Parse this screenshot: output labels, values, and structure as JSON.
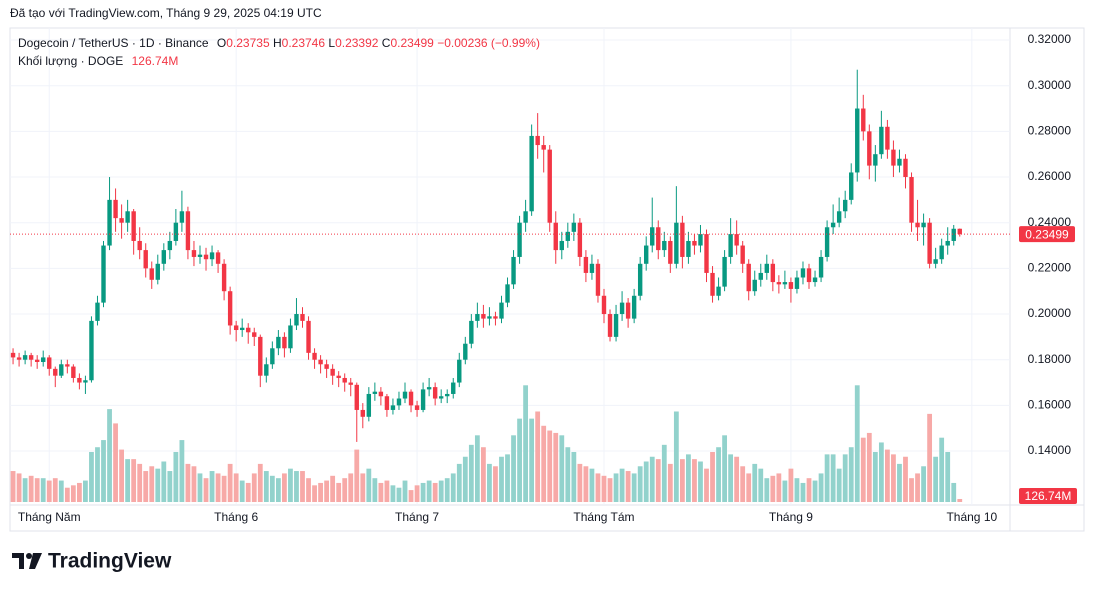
{
  "header": "Đã tạo với TradingView.com, Tháng 9 29, 2025 04:19 UTC",
  "chart_data": {
    "type": "candlestick",
    "symbol": "Dogecoin / TetherUS · 1D · Binance",
    "ohlc_labels": [
      "O",
      "H",
      "L",
      "C"
    ],
    "change_label": "−0.00236 (−0.99%)",
    "volume_title": "Khối lượng · DOGE",
    "last_volume_label": "126.74M",
    "up_color": "#089981",
    "down_color": "#f23645",
    "up_volume_color": "#92d2cc",
    "down_volume_color": "#f7a9a7",
    "grid": true,
    "xlim": [
      -2,
      165
    ],
    "xticks": [
      {
        "value": 6,
        "label": "Tháng Năm"
      },
      {
        "value": 37,
        "label": "Tháng 6"
      },
      {
        "value": 67,
        "label": "Tháng 7"
      },
      {
        "value": 98,
        "label": "Tháng Tám"
      },
      {
        "value": 129,
        "label": "Tháng 9"
      },
      {
        "value": 159,
        "label": "Tháng 10"
      }
    ],
    "ylim": [
      0.125,
      0.325
    ],
    "yticks": [
      {
        "value": 0.32,
        "label": "0.32000"
      },
      {
        "value": 0.3,
        "label": "0.30000"
      },
      {
        "value": 0.28,
        "label": "0.28000"
      },
      {
        "value": 0.26,
        "label": "0.26000"
      },
      {
        "value": 0.24,
        "label": "0.24000"
      },
      {
        "value": 0.22,
        "label": "0.22000"
      },
      {
        "value": 0.2,
        "label": "0.20000"
      },
      {
        "value": 0.18,
        "label": "0.18000"
      },
      {
        "value": 0.16,
        "label": "0.16000"
      },
      {
        "value": 0.14,
        "label": "0.14000"
      }
    ],
    "volume_ylim": [
      0,
      5500
    ],
    "candles": [
      [
        0.183,
        0.185,
        0.178,
        0.181
      ],
      [
        0.181,
        0.183,
        0.177,
        0.18
      ],
      [
        0.18,
        0.184,
        0.178,
        0.182
      ],
      [
        0.182,
        0.183,
        0.177,
        0.18
      ],
      [
        0.18,
        0.182,
        0.176,
        0.179
      ],
      [
        0.179,
        0.184,
        0.177,
        0.181
      ],
      [
        0.181,
        0.182,
        0.173,
        0.176
      ],
      [
        0.176,
        0.177,
        0.168,
        0.173
      ],
      [
        0.173,
        0.18,
        0.172,
        0.178
      ],
      [
        0.178,
        0.18,
        0.174,
        0.177
      ],
      [
        0.177,
        0.178,
        0.17,
        0.172
      ],
      [
        0.172,
        0.174,
        0.167,
        0.17
      ],
      [
        0.17,
        0.173,
        0.165,
        0.171
      ],
      [
        0.171,
        0.199,
        0.17,
        0.197
      ],
      [
        0.197,
        0.208,
        0.195,
        0.205
      ],
      [
        0.205,
        0.232,
        0.203,
        0.23
      ],
      [
        0.23,
        0.26,
        0.228,
        0.25
      ],
      [
        0.25,
        0.255,
        0.236,
        0.242
      ],
      [
        0.242,
        0.248,
        0.233,
        0.24
      ],
      [
        0.24,
        0.25,
        0.236,
        0.245
      ],
      [
        0.245,
        0.246,
        0.226,
        0.232
      ],
      [
        0.232,
        0.238,
        0.224,
        0.228
      ],
      [
        0.228,
        0.231,
        0.216,
        0.22
      ],
      [
        0.22,
        0.223,
        0.211,
        0.215
      ],
      [
        0.215,
        0.226,
        0.213,
        0.222
      ],
      [
        0.222,
        0.231,
        0.219,
        0.228
      ],
      [
        0.228,
        0.236,
        0.224,
        0.232
      ],
      [
        0.232,
        0.246,
        0.23,
        0.24
      ],
      [
        0.24,
        0.254,
        0.236,
        0.245
      ],
      [
        0.245,
        0.247,
        0.224,
        0.228
      ],
      [
        0.228,
        0.232,
        0.221,
        0.225
      ],
      [
        0.225,
        0.23,
        0.222,
        0.226
      ],
      [
        0.226,
        0.229,
        0.219,
        0.224
      ],
      [
        0.224,
        0.23,
        0.221,
        0.227
      ],
      [
        0.227,
        0.228,
        0.218,
        0.222
      ],
      [
        0.222,
        0.224,
        0.206,
        0.21
      ],
      [
        0.21,
        0.212,
        0.191,
        0.195
      ],
      [
        0.195,
        0.197,
        0.188,
        0.193
      ],
      [
        0.193,
        0.198,
        0.19,
        0.194
      ],
      [
        0.194,
        0.196,
        0.187,
        0.192
      ],
      [
        0.192,
        0.194,
        0.186,
        0.19
      ],
      [
        0.19,
        0.191,
        0.168,
        0.173
      ],
      [
        0.173,
        0.181,
        0.17,
        0.178
      ],
      [
        0.178,
        0.188,
        0.176,
        0.185
      ],
      [
        0.185,
        0.193,
        0.182,
        0.19
      ],
      [
        0.19,
        0.192,
        0.181,
        0.185
      ],
      [
        0.185,
        0.198,
        0.183,
        0.195
      ],
      [
        0.195,
        0.207,
        0.193,
        0.2
      ],
      [
        0.2,
        0.203,
        0.194,
        0.197
      ],
      [
        0.197,
        0.199,
        0.18,
        0.183
      ],
      [
        0.183,
        0.185,
        0.176,
        0.18
      ],
      [
        0.18,
        0.182,
        0.174,
        0.178
      ],
      [
        0.178,
        0.18,
        0.172,
        0.176
      ],
      [
        0.176,
        0.178,
        0.169,
        0.173
      ],
      [
        0.173,
        0.175,
        0.168,
        0.172
      ],
      [
        0.172,
        0.174,
        0.166,
        0.17
      ],
      [
        0.17,
        0.172,
        0.164,
        0.169
      ],
      [
        0.169,
        0.17,
        0.144,
        0.158
      ],
      [
        0.158,
        0.161,
        0.15,
        0.155
      ],
      [
        0.155,
        0.168,
        0.153,
        0.165
      ],
      [
        0.165,
        0.17,
        0.162,
        0.166
      ],
      [
        0.166,
        0.168,
        0.16,
        0.164
      ],
      [
        0.164,
        0.165,
        0.155,
        0.158
      ],
      [
        0.158,
        0.163,
        0.156,
        0.16
      ],
      [
        0.16,
        0.166,
        0.158,
        0.163
      ],
      [
        0.163,
        0.17,
        0.161,
        0.166
      ],
      [
        0.166,
        0.167,
        0.157,
        0.16
      ],
      [
        0.16,
        0.162,
        0.155,
        0.158
      ],
      [
        0.158,
        0.17,
        0.157,
        0.167
      ],
      [
        0.167,
        0.172,
        0.164,
        0.168
      ],
      [
        0.168,
        0.17,
        0.16,
        0.163
      ],
      [
        0.163,
        0.167,
        0.161,
        0.164
      ],
      [
        0.164,
        0.167,
        0.161,
        0.165
      ],
      [
        0.165,
        0.172,
        0.163,
        0.17
      ],
      [
        0.17,
        0.183,
        0.168,
        0.18
      ],
      [
        0.18,
        0.19,
        0.178,
        0.187
      ],
      [
        0.187,
        0.2,
        0.185,
        0.197
      ],
      [
        0.197,
        0.205,
        0.194,
        0.2
      ],
      [
        0.2,
        0.204,
        0.194,
        0.198
      ],
      [
        0.198,
        0.203,
        0.195,
        0.199
      ],
      [
        0.199,
        0.201,
        0.195,
        0.198
      ],
      [
        0.198,
        0.208,
        0.196,
        0.205
      ],
      [
        0.205,
        0.216,
        0.203,
        0.213
      ],
      [
        0.213,
        0.228,
        0.211,
        0.225
      ],
      [
        0.225,
        0.243,
        0.222,
        0.24
      ],
      [
        0.24,
        0.25,
        0.236,
        0.245
      ],
      [
        0.245,
        0.283,
        0.243,
        0.278
      ],
      [
        0.278,
        0.288,
        0.268,
        0.274
      ],
      [
        0.274,
        0.278,
        0.262,
        0.272
      ],
      [
        0.272,
        0.274,
        0.236,
        0.24
      ],
      [
        0.24,
        0.245,
        0.222,
        0.228
      ],
      [
        0.228,
        0.236,
        0.224,
        0.232
      ],
      [
        0.232,
        0.24,
        0.229,
        0.236
      ],
      [
        0.236,
        0.244,
        0.232,
        0.24
      ],
      [
        0.24,
        0.242,
        0.221,
        0.225
      ],
      [
        0.225,
        0.228,
        0.214,
        0.218
      ],
      [
        0.218,
        0.226,
        0.215,
        0.222
      ],
      [
        0.222,
        0.224,
        0.205,
        0.208
      ],
      [
        0.208,
        0.211,
        0.196,
        0.2
      ],
      [
        0.2,
        0.202,
        0.188,
        0.19
      ],
      [
        0.19,
        0.204,
        0.188,
        0.2
      ],
      [
        0.2,
        0.21,
        0.197,
        0.205
      ],
      [
        0.205,
        0.207,
        0.194,
        0.198
      ],
      [
        0.198,
        0.211,
        0.196,
        0.208
      ],
      [
        0.208,
        0.225,
        0.206,
        0.222
      ],
      [
        0.222,
        0.234,
        0.219,
        0.23
      ],
      [
        0.23,
        0.251,
        0.227,
        0.238
      ],
      [
        0.238,
        0.241,
        0.224,
        0.228
      ],
      [
        0.228,
        0.236,
        0.225,
        0.232
      ],
      [
        0.232,
        0.234,
        0.218,
        0.222
      ],
      [
        0.222,
        0.256,
        0.22,
        0.24
      ],
      [
        0.24,
        0.243,
        0.22,
        0.225
      ],
      [
        0.225,
        0.236,
        0.222,
        0.232
      ],
      [
        0.232,
        0.235,
        0.226,
        0.23
      ],
      [
        0.23,
        0.239,
        0.227,
        0.235
      ],
      [
        0.235,
        0.237,
        0.214,
        0.218
      ],
      [
        0.218,
        0.221,
        0.205,
        0.208
      ],
      [
        0.208,
        0.216,
        0.206,
        0.212
      ],
      [
        0.212,
        0.228,
        0.21,
        0.225
      ],
      [
        0.225,
        0.242,
        0.222,
        0.235
      ],
      [
        0.235,
        0.241,
        0.226,
        0.23
      ],
      [
        0.23,
        0.232,
        0.218,
        0.222
      ],
      [
        0.222,
        0.224,
        0.206,
        0.21
      ],
      [
        0.21,
        0.219,
        0.208,
        0.215
      ],
      [
        0.215,
        0.222,
        0.212,
        0.218
      ],
      [
        0.218,
        0.226,
        0.215,
        0.222
      ],
      [
        0.222,
        0.224,
        0.21,
        0.214
      ],
      [
        0.214,
        0.217,
        0.209,
        0.213
      ],
      [
        0.213,
        0.219,
        0.211,
        0.214
      ],
      [
        0.214,
        0.216,
        0.205,
        0.211
      ],
      [
        0.211,
        0.219,
        0.209,
        0.216
      ],
      [
        0.216,
        0.223,
        0.213,
        0.22
      ],
      [
        0.22,
        0.222,
        0.211,
        0.214
      ],
      [
        0.214,
        0.219,
        0.212,
        0.216
      ],
      [
        0.216,
        0.228,
        0.214,
        0.225
      ],
      [
        0.225,
        0.241,
        0.223,
        0.238
      ],
      [
        0.238,
        0.248,
        0.235,
        0.24
      ],
      [
        0.24,
        0.251,
        0.238,
        0.245
      ],
      [
        0.245,
        0.254,
        0.242,
        0.25
      ],
      [
        0.25,
        0.266,
        0.248,
        0.262
      ],
      [
        0.262,
        0.307,
        0.258,
        0.29
      ],
      [
        0.29,
        0.296,
        0.276,
        0.28
      ],
      [
        0.28,
        0.283,
        0.259,
        0.265
      ],
      [
        0.265,
        0.274,
        0.258,
        0.27
      ],
      [
        0.27,
        0.289,
        0.268,
        0.282
      ],
      [
        0.282,
        0.285,
        0.268,
        0.272
      ],
      [
        0.272,
        0.276,
        0.26,
        0.265
      ],
      [
        0.265,
        0.272,
        0.262,
        0.268
      ],
      [
        0.268,
        0.27,
        0.255,
        0.26
      ],
      [
        0.26,
        0.262,
        0.236,
        0.24
      ],
      [
        0.24,
        0.25,
        0.232,
        0.238
      ],
      [
        0.238,
        0.244,
        0.23,
        0.24
      ],
      [
        0.24,
        0.242,
        0.22,
        0.222
      ],
      [
        0.222,
        0.229,
        0.22,
        0.224
      ],
      [
        0.224,
        0.233,
        0.222,
        0.23
      ],
      [
        0.23,
        0.238,
        0.226,
        0.232
      ],
      [
        0.232,
        0.239,
        0.23,
        0.23735
      ],
      [
        0.23735,
        0.23746,
        0.23392,
        0.23499
      ]
    ],
    "volumes": [
      1300,
      1200,
      1000,
      1100,
      1000,
      1000,
      900,
      1000,
      900,
      600,
      700,
      800,
      900,
      2100,
      2300,
      2600,
      3900,
      3300,
      2200,
      1800,
      1800,
      1600,
      1300,
      1500,
      1400,
      1700,
      1300,
      2100,
      2600,
      1600,
      1500,
      1200,
      1000,
      1300,
      1200,
      1100,
      1600,
      1200,
      900,
      800,
      1200,
      1600,
      1300,
      1100,
      1000,
      1200,
      1400,
      1300,
      1300,
      1000,
      700,
      800,
      900,
      1100,
      800,
      1000,
      1200,
      2200,
      1200,
      1400,
      1000,
      800,
      900,
      700,
      600,
      900,
      500,
      700,
      800,
      900,
      800,
      900,
      1000,
      1200,
      1600,
      1900,
      2400,
      2800,
      2300,
      1600,
      1500,
      1900,
      2000,
      2800,
      3500,
      4900,
      3500,
      3800,
      3200,
      3000,
      2900,
      2800,
      2300,
      2100,
      1600,
      1500,
      1400,
      1200,
      1100,
      1000,
      1200,
      1400,
      1300,
      1200,
      1500,
      1700,
      1900,
      1800,
      2400,
      1600,
      3800,
      1800,
      2000,
      1800,
      1700,
      1400,
      2100,
      2300,
      2800,
      2000,
      1900,
      1500,
      1200,
      1600,
      1400,
      1000,
      1100,
      1200,
      900,
      1400,
      1000,
      800,
      1000,
      900,
      1200,
      2000,
      2000,
      1400,
      2000,
      2300,
      4900,
      2700,
      2900,
      2100,
      2500,
      2200,
      2000,
      1600,
      1900,
      1000,
      1200,
      1500,
      3700,
      1900,
      2700,
      2100,
      800,
      126.74
    ]
  },
  "footer": {
    "logo": "TradingView"
  }
}
